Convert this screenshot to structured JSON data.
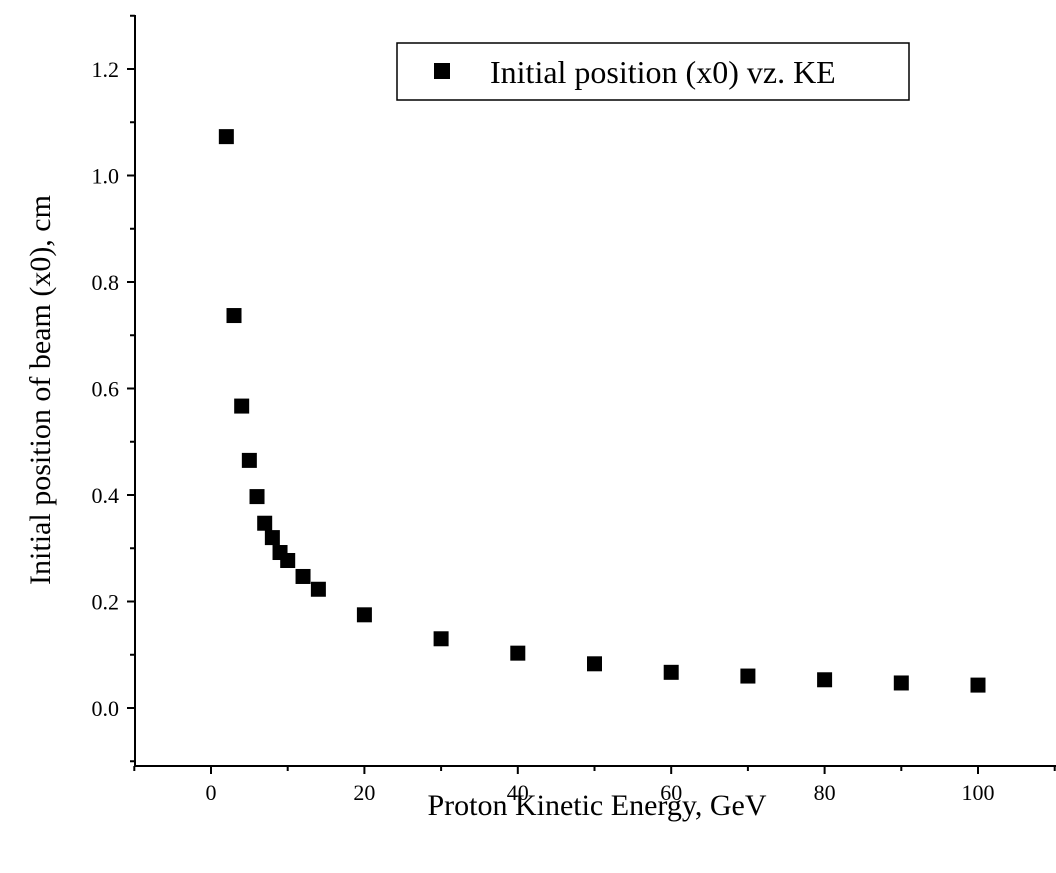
{
  "chart_data": {
    "type": "scatter",
    "title": "",
    "xlabel": "Proton Kinetic Energy, GeV",
    "ylabel": "Initial position of beam (x0), cm",
    "xlim": [
      -10,
      110
    ],
    "ylim": [
      -0.1,
      1.3
    ],
    "x_ticks": [
      0,
      20,
      40,
      60,
      80,
      100
    ],
    "x_tick_labels": [
      "0",
      "20",
      "40",
      "60",
      "80",
      "100"
    ],
    "y_ticks": [
      0.0,
      0.2,
      0.4,
      0.6,
      0.8,
      1.0,
      1.2
    ],
    "y_tick_labels": [
      "0.0",
      "0.2",
      "0.4",
      "0.6",
      "0.8",
      "1.0",
      "1.2"
    ],
    "grid": false,
    "legend_position": "top-right",
    "series": [
      {
        "name": "Initial position (x0) vz. KE",
        "marker": "square",
        "color": "#000000",
        "x": [
          2,
          3,
          4,
          5,
          6,
          7,
          8,
          9,
          10,
          12,
          14,
          20,
          30,
          40,
          50,
          60,
          70,
          80,
          90,
          100
        ],
        "y": [
          1.073,
          0.737,
          0.567,
          0.465,
          0.397,
          0.347,
          0.32,
          0.292,
          0.277,
          0.247,
          0.223,
          0.175,
          0.13,
          0.103,
          0.083,
          0.067,
          0.06,
          0.053,
          0.047,
          0.043
        ]
      }
    ]
  }
}
